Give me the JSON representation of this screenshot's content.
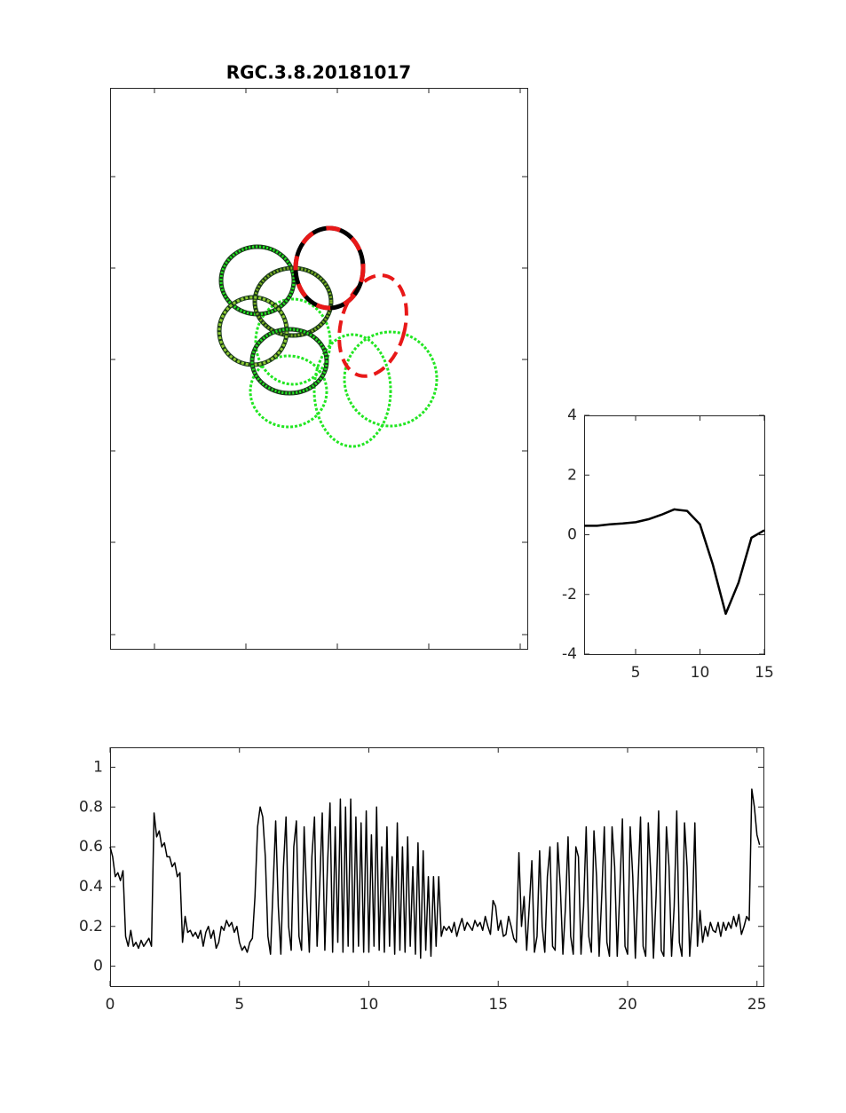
{
  "chart_data": [
    {
      "type": "ellipse",
      "title": "RGC.3.8.20181017"
    },
    {
      "type": "line",
      "x": [
        1,
        2,
        3,
        4,
        5,
        6,
        7,
        8,
        9,
        10,
        11,
        12,
        13,
        14,
        15
      ],
      "values": [
        0.3,
        0.3,
        0.35,
        0.38,
        0.42,
        0.52,
        0.67,
        0.85,
        0.8,
        0.35,
        -1.0,
        -2.65,
        -1.6,
        -0.1,
        0.15
      ],
      "color": "#000000",
      "xlim": [
        1,
        15
      ],
      "ylim": [
        -4,
        4
      ],
      "xticks": [
        5,
        10,
        15
      ],
      "yticks": [
        -4,
        -2,
        0,
        2,
        4
      ]
    },
    {
      "type": "line",
      "x": [
        0,
        0.1,
        0.2,
        0.3,
        0.4,
        0.5,
        0.6,
        0.7,
        0.8,
        0.9,
        1,
        1.1,
        1.2,
        1.3,
        1.4,
        1.5,
        1.6,
        1.7,
        1.8,
        1.9,
        2,
        2.1,
        2.2,
        2.3,
        2.4,
        2.5,
        2.6,
        2.7,
        2.8,
        2.9,
        3,
        3.1,
        3.2,
        3.3,
        3.4,
        3.5,
        3.6,
        3.7,
        3.8,
        3.9,
        4,
        4.1,
        4.2,
        4.3,
        4.4,
        4.5,
        4.6,
        4.7,
        4.8,
        4.9,
        5,
        5.1,
        5.2,
        5.3,
        5.4,
        5.5,
        5.6,
        5.7,
        5.8,
        5.9,
        6,
        6.1,
        6.2,
        6.3,
        6.4,
        6.5,
        6.6,
        6.7,
        6.8,
        6.9,
        7,
        7.1,
        7.2,
        7.3,
        7.4,
        7.5,
        7.6,
        7.7,
        7.8,
        7.9,
        8,
        8.1,
        8.2,
        8.3,
        8.4,
        8.5,
        8.6,
        8.7,
        8.8,
        8.9,
        9,
        9.1,
        9.2,
        9.3,
        9.4,
        9.5,
        9.6,
        9.7,
        9.8,
        9.9,
        10,
        10.1,
        10.2,
        10.3,
        10.4,
        10.5,
        10.6,
        10.7,
        10.8,
        10.9,
        11,
        11.1,
        11.2,
        11.3,
        11.4,
        11.5,
        11.6,
        11.7,
        11.8,
        11.9,
        12,
        12.1,
        12.2,
        12.3,
        12.4,
        12.5,
        12.6,
        12.7,
        12.8,
        12.9,
        13,
        13.1,
        13.2,
        13.3,
        13.4,
        13.5,
        13.6,
        13.7,
        13.8,
        13.9,
        14,
        14.1,
        14.2,
        14.3,
        14.4,
        14.5,
        14.6,
        14.7,
        14.8,
        14.9,
        15,
        15.1,
        15.2,
        15.3,
        15.4,
        15.5,
        15.6,
        15.7,
        15.8,
        15.9,
        16,
        16.1,
        16.2,
        16.3,
        16.4,
        16.5,
        16.6,
        16.7,
        16.8,
        16.9,
        17,
        17.1,
        17.2,
        17.3,
        17.4,
        17.5,
        17.6,
        17.7,
        17.8,
        17.9,
        18,
        18.1,
        18.2,
        18.3,
        18.4,
        18.5,
        18.6,
        18.7,
        18.8,
        18.9,
        19,
        19.1,
        19.2,
        19.3,
        19.4,
        19.5,
        19.6,
        19.7,
        19.8,
        19.9,
        20,
        20.1,
        20.2,
        20.3,
        20.4,
        20.5,
        20.6,
        20.7,
        20.8,
        20.9,
        21,
        21.1,
        21.2,
        21.3,
        21.4,
        21.5,
        21.6,
        21.7,
        21.8,
        21.9,
        22,
        22.1,
        22.2,
        22.3,
        22.4,
        22.5,
        22.6,
        22.7,
        22.8,
        22.9,
        23,
        23.1,
        23.2,
        23.3,
        23.4,
        23.5,
        23.6,
        23.7,
        23.8,
        23.9,
        24,
        24.1,
        24.2,
        24.3,
        24.4,
        24.5,
        24.6,
        24.7,
        24.8,
        24.9,
        25,
        25.1
      ],
      "values": [
        0.6,
        0.55,
        0.45,
        0.47,
        0.43,
        0.48,
        0.15,
        0.1,
        0.18,
        0.1,
        0.12,
        0.09,
        0.13,
        0.1,
        0.12,
        0.14,
        0.1,
        0.77,
        0.65,
        0.68,
        0.6,
        0.62,
        0.55,
        0.55,
        0.5,
        0.52,
        0.45,
        0.47,
        0.12,
        0.25,
        0.17,
        0.18,
        0.15,
        0.17,
        0.14,
        0.18,
        0.1,
        0.17,
        0.2,
        0.14,
        0.18,
        0.09,
        0.12,
        0.2,
        0.18,
        0.23,
        0.2,
        0.22,
        0.17,
        0.2,
        0.12,
        0.08,
        0.1,
        0.07,
        0.12,
        0.14,
        0.35,
        0.7,
        0.8,
        0.75,
        0.55,
        0.15,
        0.06,
        0.4,
        0.73,
        0.3,
        0.06,
        0.5,
        0.75,
        0.2,
        0.08,
        0.6,
        0.73,
        0.15,
        0.08,
        0.7,
        0.35,
        0.07,
        0.55,
        0.75,
        0.1,
        0.4,
        0.77,
        0.08,
        0.5,
        0.82,
        0.07,
        0.7,
        0.12,
        0.84,
        0.07,
        0.8,
        0.1,
        0.84,
        0.07,
        0.75,
        0.1,
        0.72,
        0.07,
        0.78,
        0.07,
        0.66,
        0.1,
        0.8,
        0.08,
        0.6,
        0.07,
        0.7,
        0.1,
        0.55,
        0.06,
        0.72,
        0.08,
        0.6,
        0.07,
        0.65,
        0.1,
        0.5,
        0.06,
        0.62,
        0.04,
        0.58,
        0.08,
        0.45,
        0.05,
        0.45,
        0.1,
        0.45,
        0.15,
        0.2,
        0.18,
        0.2,
        0.17,
        0.22,
        0.15,
        0.2,
        0.24,
        0.18,
        0.22,
        0.2,
        0.18,
        0.23,
        0.2,
        0.22,
        0.18,
        0.25,
        0.2,
        0.16,
        0.33,
        0.3,
        0.18,
        0.23,
        0.15,
        0.16,
        0.25,
        0.2,
        0.14,
        0.12,
        0.57,
        0.2,
        0.35,
        0.08,
        0.3,
        0.53,
        0.07,
        0.15,
        0.58,
        0.2,
        0.07,
        0.45,
        0.6,
        0.1,
        0.08,
        0.62,
        0.4,
        0.06,
        0.3,
        0.65,
        0.15,
        0.06,
        0.6,
        0.55,
        0.06,
        0.3,
        0.7,
        0.15,
        0.07,
        0.68,
        0.45,
        0.05,
        0.35,
        0.7,
        0.12,
        0.05,
        0.7,
        0.5,
        0.05,
        0.38,
        0.74,
        0.1,
        0.06,
        0.7,
        0.45,
        0.04,
        0.4,
        0.75,
        0.1,
        0.05,
        0.72,
        0.45,
        0.04,
        0.35,
        0.78,
        0.08,
        0.05,
        0.7,
        0.5,
        0.05,
        0.3,
        0.78,
        0.12,
        0.05,
        0.72,
        0.5,
        0.05,
        0.25,
        0.72,
        0.1,
        0.28,
        0.12,
        0.2,
        0.15,
        0.22,
        0.18,
        0.17,
        0.22,
        0.15,
        0.22,
        0.18,
        0.22,
        0.19,
        0.25,
        0.2,
        0.26,
        0.16,
        0.2,
        0.25,
        0.23,
        0.89,
        0.8,
        0.66,
        0.61
      ],
      "color": "#000000",
      "xlim": [
        0,
        25.25
      ],
      "ylim": [
        -0.1,
        1.1
      ],
      "xticks": [
        0,
        5,
        10,
        15,
        20,
        25
      ],
      "yticks": [
        0,
        0.2,
        0.4,
        0.6,
        0.8,
        1
      ]
    }
  ]
}
